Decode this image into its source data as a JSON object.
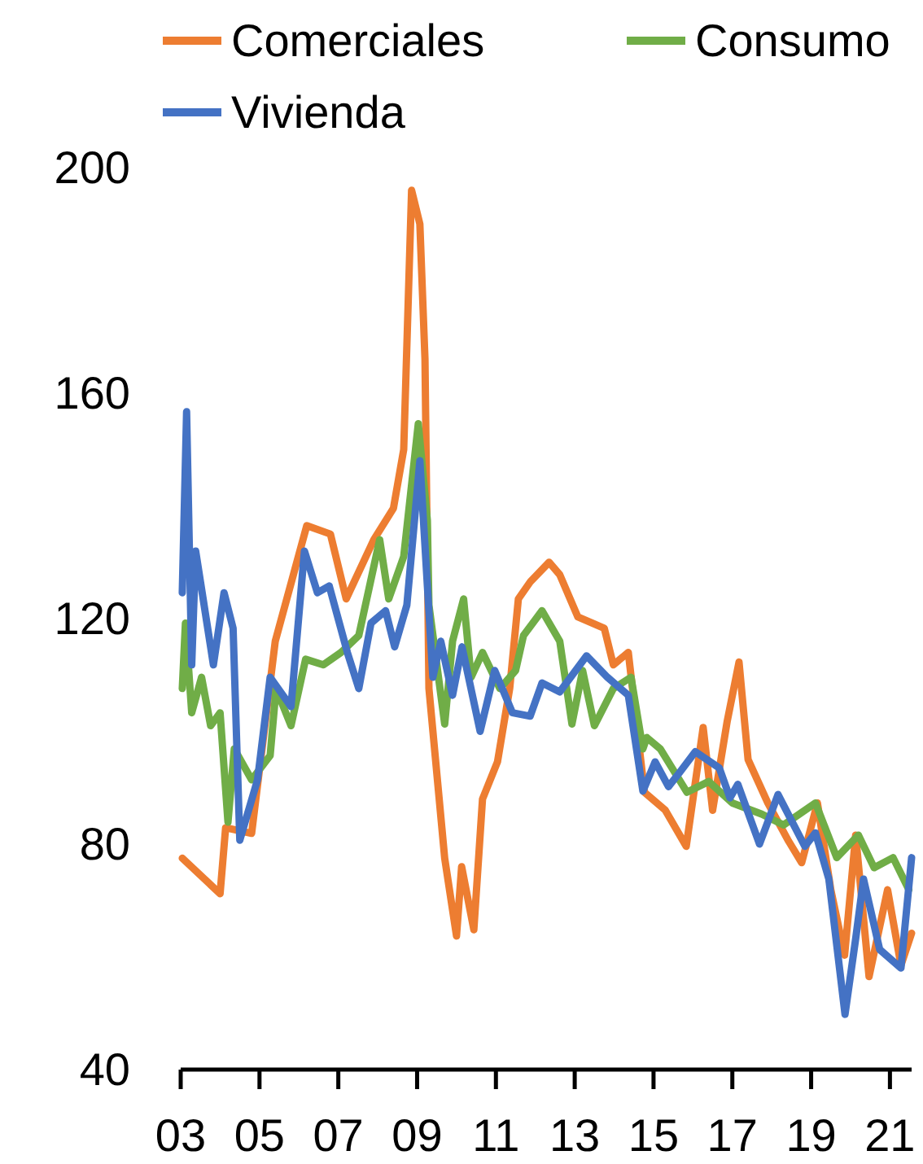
{
  "chart_data": {
    "type": "line",
    "legend": "top",
    "line_style": "solid",
    "marker": "none",
    "grid": false,
    "xlim": [
      2003,
      2021.55
    ],
    "xticks": [
      {
        "value": 2003,
        "label": "03"
      },
      {
        "value": 2005,
        "label": "05"
      },
      {
        "value": 2007,
        "label": "07"
      },
      {
        "value": 2009,
        "label": "09"
      },
      {
        "value": 2011,
        "label": "11"
      },
      {
        "value": 2013,
        "label": "13"
      },
      {
        "value": 2015,
        "label": "15"
      },
      {
        "value": 2017,
        "label": "17"
      },
      {
        "value": 2019,
        "label": "19"
      },
      {
        "value": 2021,
        "label": "21"
      }
    ],
    "ylim": [
      40,
      200
    ],
    "yticks": [
      40,
      80,
      120,
      160,
      200
    ],
    "series": [
      {
        "name": "Comerciales",
        "color": "#ed7d31",
        "x": [
          2003.04,
          2004.0,
          2004.14,
          2004.8,
          2005.4,
          2006.2,
          2006.8,
          2007.2,
          2007.9,
          2008.4,
          2008.66,
          2008.86,
          2009.07,
          2009.2,
          2009.3,
          2009.7,
          2010.0,
          2010.13,
          2010.44,
          2010.66,
          2011.04,
          2011.35,
          2011.57,
          2011.88,
          2012.35,
          2012.62,
          2013.08,
          2013.75,
          2013.98,
          2014.36,
          2014.77,
          2015.3,
          2015.83,
          2016.26,
          2016.5,
          2016.87,
          2017.17,
          2017.4,
          2017.9,
          2018.43,
          2018.76,
          2019.16,
          2019.5,
          2019.85,
          2020.13,
          2020.47,
          2020.94,
          2021.28,
          2021.55
        ],
        "values": [
          77.5,
          71.2,
          82.9,
          81.9,
          116,
          136.5,
          135,
          123.5,
          134,
          139.6,
          150,
          196,
          190,
          166,
          107.6,
          77.5,
          63.7,
          76,
          64.8,
          88,
          94.6,
          107.6,
          123.5,
          126.6,
          130,
          127.8,
          120.3,
          118.3,
          111.8,
          114,
          89.2,
          86,
          79.6,
          100.7,
          86,
          101.8,
          112.3,
          95,
          87.3,
          80.5,
          76.7,
          87.3,
          71.9,
          60.3,
          81.6,
          56.5,
          71.9,
          58.5,
          64.2
        ]
      },
      {
        "name": "Consumo",
        "color": "#70ad47",
        "x": [
          2003.04,
          2003.12,
          2003.28,
          2003.53,
          2003.76,
          2004.0,
          2004.2,
          2004.36,
          2004.8,
          2005.27,
          2005.42,
          2005.8,
          2006.17,
          2006.62,
          2007.07,
          2007.52,
          2008.05,
          2008.28,
          2008.66,
          2009.03,
          2009.26,
          2009.3,
          2009.7,
          2009.9,
          2010.18,
          2010.37,
          2010.66,
          2011.1,
          2011.5,
          2011.7,
          2012.17,
          2012.62,
          2012.93,
          2013.2,
          2013.5,
          2013.98,
          2014.43,
          2014.73,
          2014.83,
          2015.17,
          2015.85,
          2016.4,
          2017.0,
          2017.75,
          2018.3,
          2019.11,
          2019.65,
          2020.2,
          2020.6,
          2021.08,
          2021.48
        ],
        "values": [
          107.6,
          119.2,
          103.3,
          109.6,
          101,
          103.3,
          83.9,
          96.9,
          91.4,
          95.7,
          107.6,
          101,
          112.8,
          111.8,
          114,
          117,
          134,
          123.5,
          131,
          154.6,
          137.5,
          122.4,
          101.3,
          116,
          123.5,
          109.6,
          114,
          107.6,
          110.8,
          117,
          121.4,
          116,
          101.3,
          110.8,
          101,
          107.6,
          109.6,
          96.9,
          98.9,
          96.9,
          89.2,
          91.1,
          87.3,
          85.3,
          83.4,
          87.3,
          77.6,
          81.6,
          75.8,
          77.6,
          71.9
        ]
      },
      {
        "name": "Vivienda",
        "color": "#4472c4",
        "x": [
          2003.04,
          2003.15,
          2003.28,
          2003.38,
          2003.83,
          2004.1,
          2004.33,
          2004.5,
          2004.95,
          2005.27,
          2005.8,
          2006.14,
          2006.47,
          2006.77,
          2007.23,
          2007.52,
          2007.83,
          2008.2,
          2008.43,
          2008.74,
          2009.07,
          2009.4,
          2009.6,
          2009.9,
          2010.14,
          2010.6,
          2010.97,
          2011.42,
          2011.87,
          2012.17,
          2012.62,
          2013.3,
          2013.83,
          2014.36,
          2014.73,
          2015.04,
          2015.38,
          2015.65,
          2016.06,
          2016.67,
          2016.94,
          2017.14,
          2017.69,
          2018.16,
          2018.84,
          2019.11,
          2019.45,
          2019.86,
          2020.13,
          2020.33,
          2020.74,
          2021.28,
          2021.55
        ],
        "values": [
          124.6,
          156.7,
          111.8,
          132,
          111.8,
          124.6,
          118.3,
          80.7,
          91.4,
          109.6,
          104.4,
          132,
          124.6,
          125.8,
          114,
          107.6,
          119.2,
          121.4,
          115,
          122.4,
          148,
          109.6,
          116,
          106.4,
          115,
          100,
          110.8,
          103.3,
          102.7,
          108.6,
          107,
          113.4,
          109.6,
          106.4,
          89.4,
          94.6,
          90.2,
          92.6,
          96.4,
          93.5,
          88.2,
          90.6,
          80,
          88.8,
          79.6,
          82,
          73.8,
          49.8,
          63.2,
          73.8,
          61.3,
          58,
          77.6
        ]
      }
    ]
  }
}
